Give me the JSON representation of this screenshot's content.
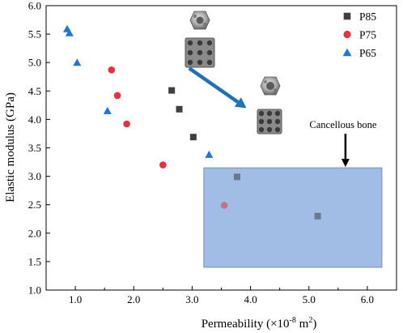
{
  "chart_data": {
    "type": "scatter",
    "xlabel_main": "Permeability (×10",
    "xlabel_exp": "-8",
    "xlabel_unit": " m",
    "xlabel_unit_exp": "2",
    "xlabel_close": ")",
    "ylabel": "Elastic modulus (GPa)",
    "xlim": [
      0.5,
      6.5
    ],
    "ylim": [
      1.0,
      6.0
    ],
    "x_ticks": [
      {
        "value": 1.0,
        "label": "1.0"
      },
      {
        "value": 2.0,
        "label": "2.0"
      },
      {
        "value": 3.0,
        "label": "3.0"
      },
      {
        "value": 4.0,
        "label": "4.0"
      },
      {
        "value": 5.0,
        "label": "5.0"
      },
      {
        "value": 6.0,
        "label": "6.0"
      }
    ],
    "y_ticks": [
      {
        "value": 1.0,
        "label": "1.0"
      },
      {
        "value": 1.5,
        "label": "1.5"
      },
      {
        "value": 2.0,
        "label": "2.0"
      },
      {
        "value": 2.5,
        "label": "2.5"
      },
      {
        "value": 3.0,
        "label": "3.0"
      },
      {
        "value": 3.5,
        "label": "3.5"
      },
      {
        "value": 4.0,
        "label": "4.0"
      },
      {
        "value": 4.5,
        "label": "4.5"
      },
      {
        "value": 5.0,
        "label": "5.0"
      },
      {
        "value": 5.5,
        "label": "5.5"
      },
      {
        "value": 6.0,
        "label": "6.0"
      }
    ],
    "grid": false,
    "legend_position": "top-right",
    "series": [
      {
        "name": "P85",
        "marker": "square",
        "color": "#404040",
        "points": [
          {
            "x": 2.65,
            "y": 4.51
          },
          {
            "x": 2.78,
            "y": 4.18
          },
          {
            "x": 3.02,
            "y": 3.69
          },
          {
            "x": 3.77,
            "y": 2.99
          },
          {
            "x": 5.15,
            "y": 2.3
          }
        ]
      },
      {
        "name": "P75",
        "marker": "circle",
        "color": "#e8313a",
        "points": [
          {
            "x": 1.62,
            "y": 4.87
          },
          {
            "x": 1.72,
            "y": 4.42
          },
          {
            "x": 1.88,
            "y": 3.92
          },
          {
            "x": 2.5,
            "y": 3.2
          },
          {
            "x": 3.55,
            "y": 2.49
          }
        ]
      },
      {
        "name": "P65",
        "marker": "triangle",
        "color": "#1f77d4",
        "points": [
          {
            "x": 0.86,
            "y": 5.59
          },
          {
            "x": 0.9,
            "y": 5.52
          },
          {
            "x": 1.03,
            "y": 5.0
          },
          {
            "x": 1.55,
            "y": 4.15
          },
          {
            "x": 3.29,
            "y": 3.38
          }
        ]
      }
    ],
    "shaded_region": {
      "label": "Cancellous bone",
      "x_range": [
        3.2,
        6.25
      ],
      "y_range": [
        1.4,
        3.15
      ],
      "color": "#6f9ad9",
      "opacity": 0.65
    },
    "trend_arrow": {
      "from": {
        "x": 2.95,
        "y": 4.9
      },
      "to": {
        "x": 3.93,
        "y": 4.2
      },
      "color": "#1e72b8"
    }
  }
}
